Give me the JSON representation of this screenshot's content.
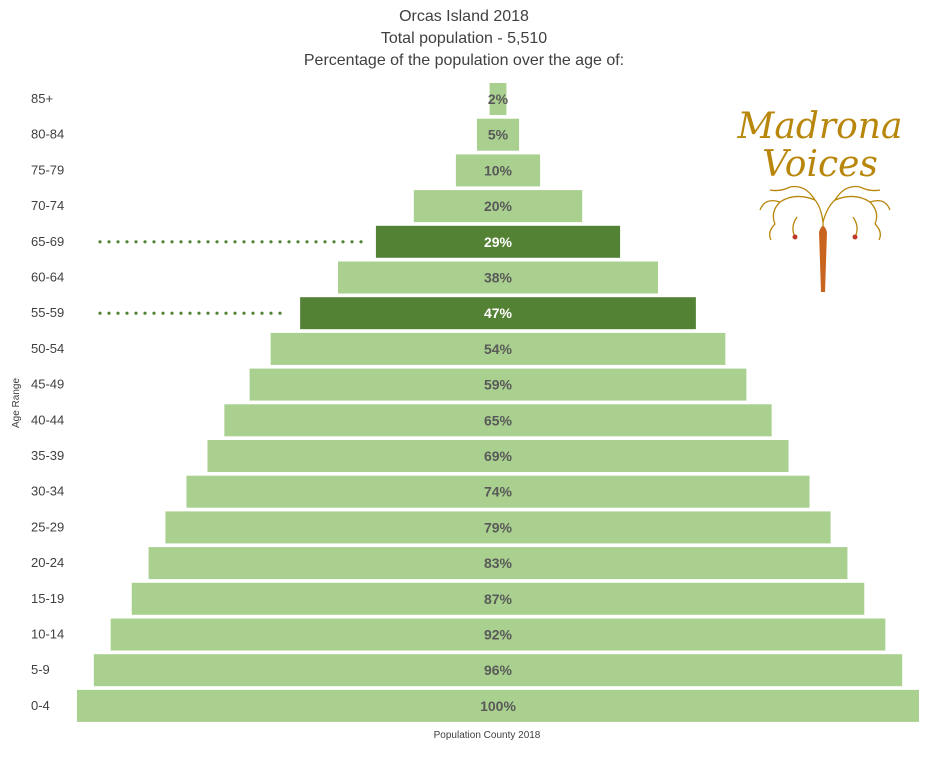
{
  "chart_data": {
    "type": "bar",
    "title": [
      "Orcas Island 2018",
      "Total population - 5,510",
      "Percentage of the population over the age of:"
    ],
    "ylabel": "Age Range",
    "xlabel": "Population County 2018",
    "categories": [
      "85+",
      "80-84",
      "75-79",
      "70-74",
      "65-69",
      "60-64",
      "55-59",
      "50-54",
      "45-49",
      "40-44",
      "35-39",
      "30-34",
      "25-29",
      "20-24",
      "15-19",
      "10-14",
      "5-9",
      "0-4"
    ],
    "values": [
      2,
      5,
      10,
      20,
      29,
      38,
      47,
      54,
      59,
      65,
      69,
      74,
      79,
      83,
      87,
      92,
      96,
      100
    ],
    "labels": [
      "2%",
      "5%",
      "10%",
      "20%",
      "29%",
      "38%",
      "47%",
      "54%",
      "59%",
      "65%",
      "69%",
      "74%",
      "79%",
      "83%",
      "87%",
      "92%",
      "96%",
      "100%"
    ],
    "highlighted": [
      "65-69",
      "55-59"
    ],
    "xlim": [
      0,
      100
    ],
    "colors": {
      "bar": "#a9d08e",
      "highlight": "#548235",
      "label": "#595959",
      "highlight_label": "#ffffff"
    }
  },
  "logo": {
    "line1": "Madrona",
    "line2": "Voices"
  }
}
